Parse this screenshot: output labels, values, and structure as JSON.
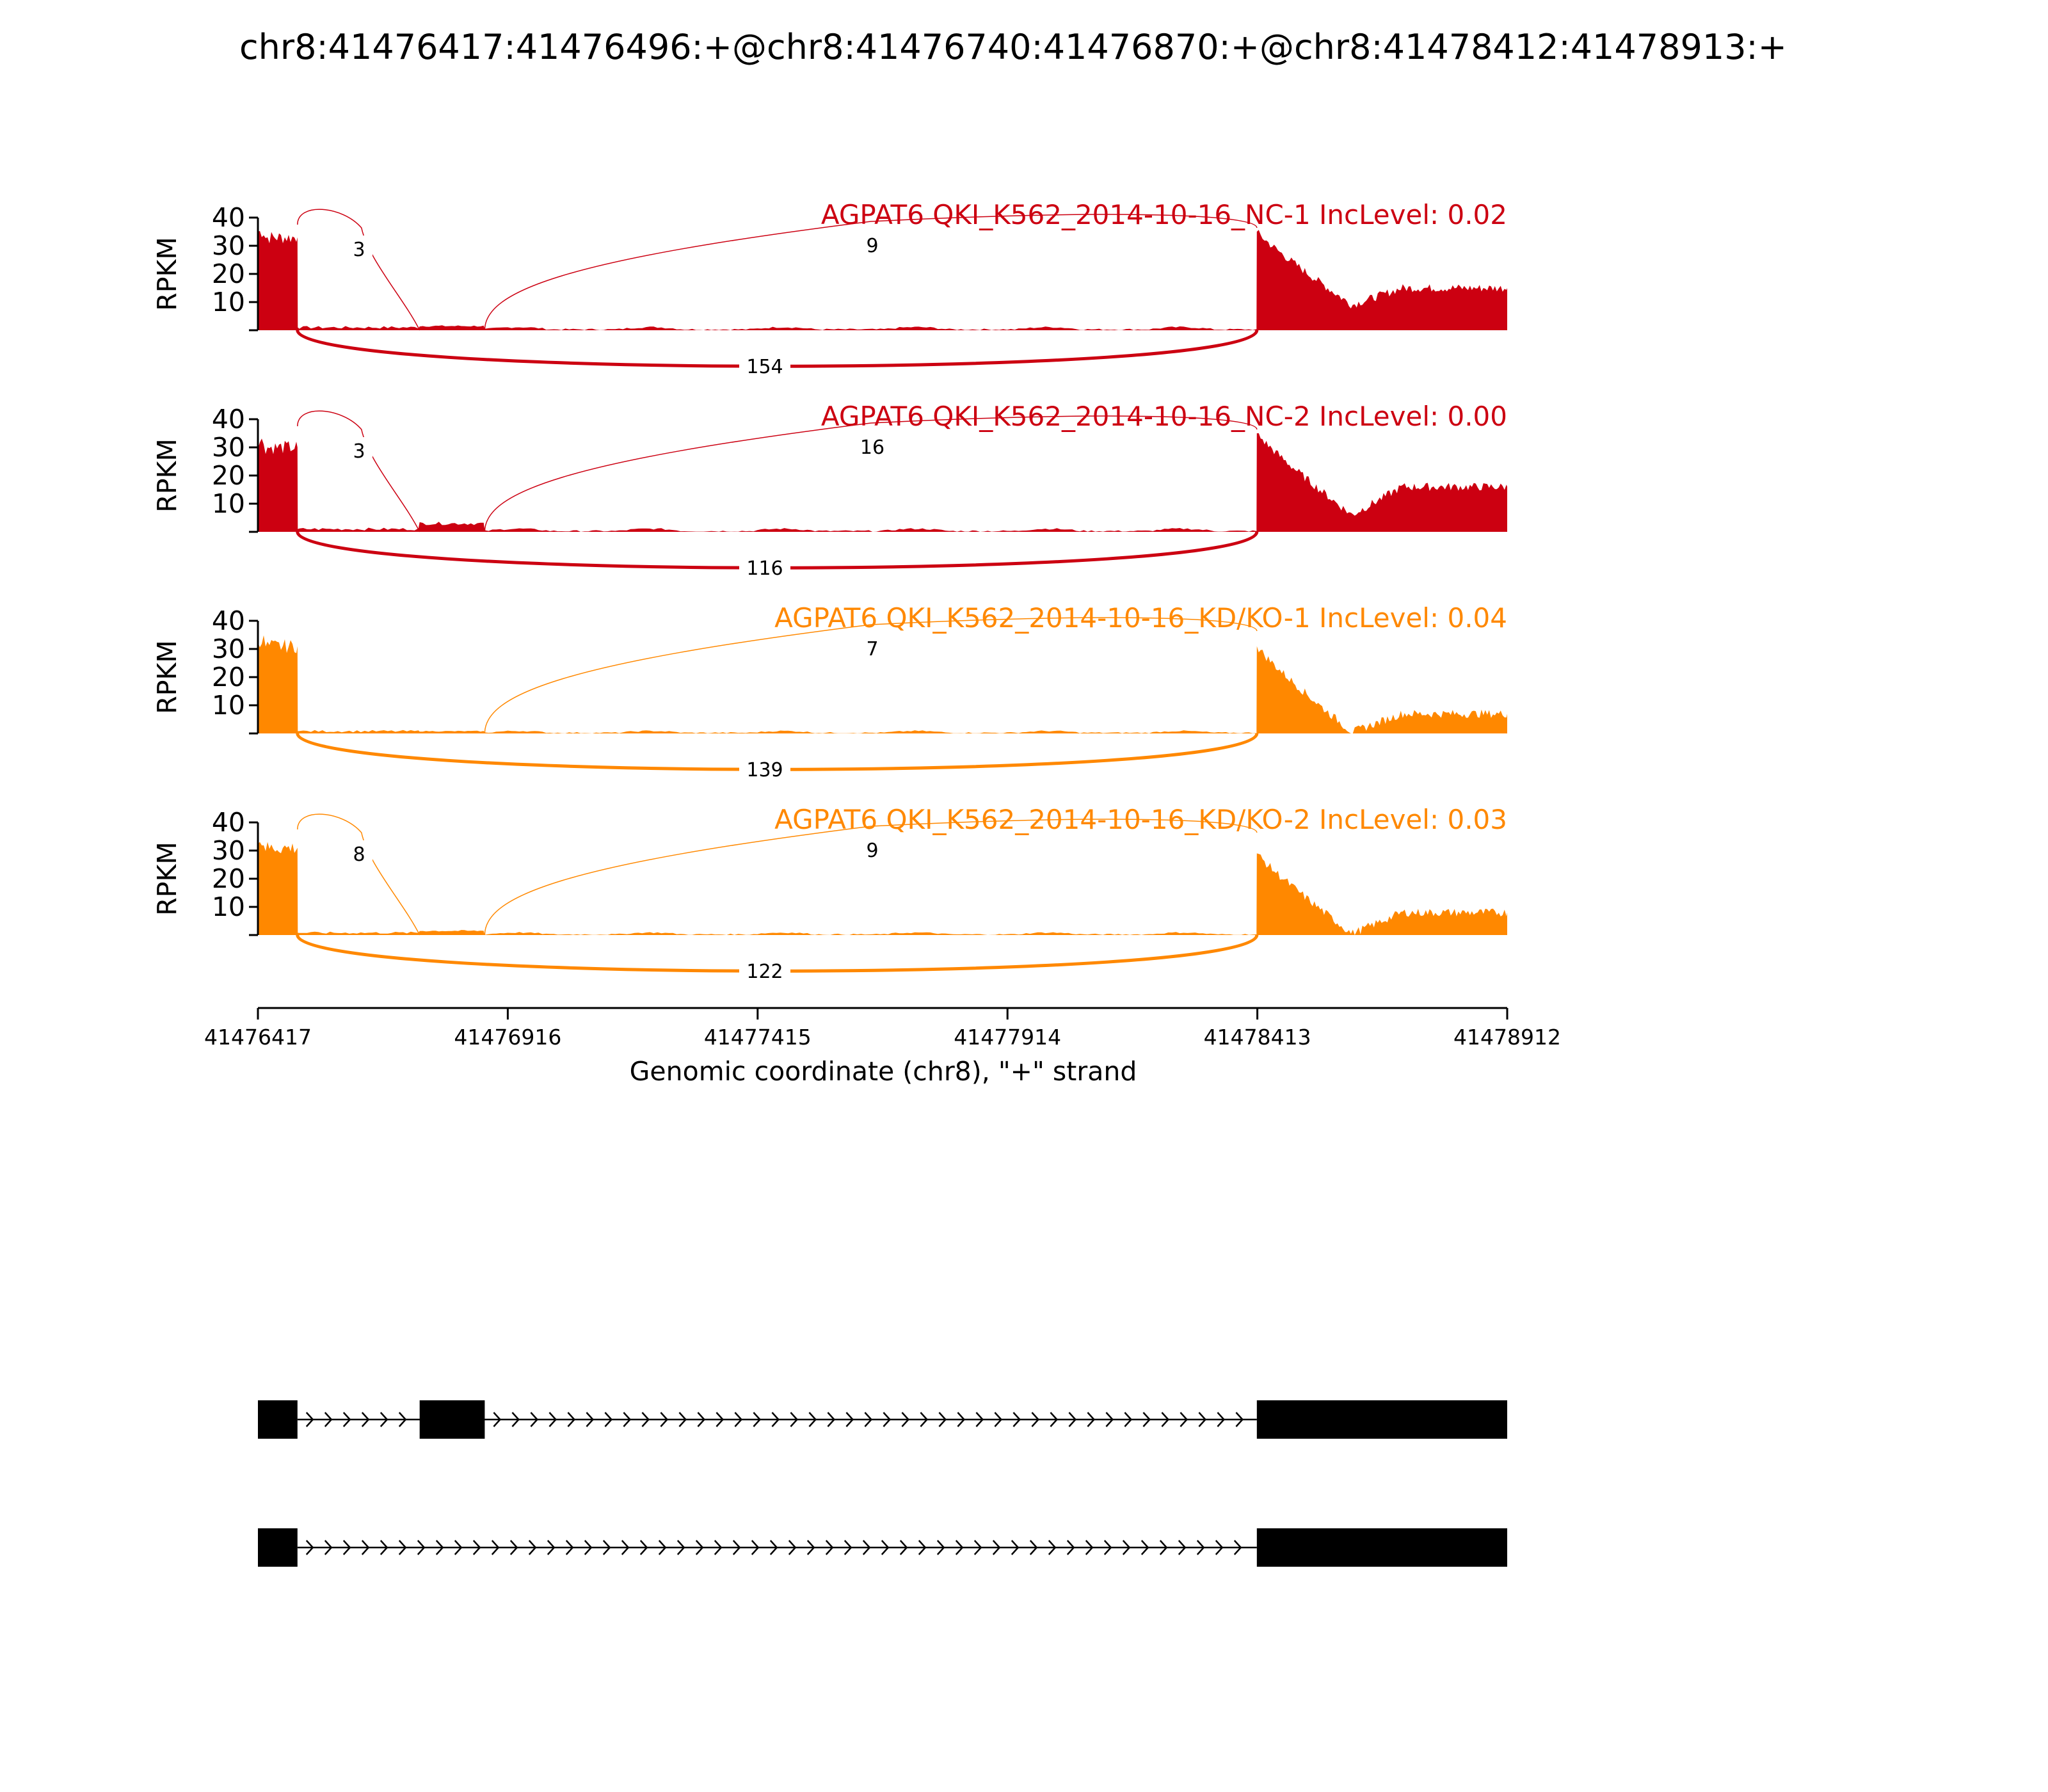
{
  "chart_data": {
    "type": "area",
    "title": "chr8:41476417:41476496:+@chr8:41476740:41476870:+@chr8:41478412:41478913:+",
    "xlabel": "Genomic coordinate (chr8), \"+\" strand",
    "ylabel": "RPKM",
    "xlim": [
      41476417,
      41478912
    ],
    "ylim": [
      0,
      40
    ],
    "x_ticks": [
      "41476417",
      "41476916",
      "41477415",
      "41477914",
      "41478413",
      "41478912"
    ],
    "y_ticks": [
      "10",
      "20",
      "30",
      "40"
    ],
    "colors": {
      "NC": "#cc0011",
      "KD": "#ff8800"
    },
    "exons": [
      [
        41476417,
        41476496
      ],
      [
        41476740,
        41476870
      ],
      [
        41478412,
        41478913
      ]
    ],
    "tracks": [
      {
        "label": "AGPAT6 QKI_K562_2014-10-16_NC-1 IncLevel: 0.02",
        "group": "NC",
        "junctions": {
          "upstream_to_skipped": "3",
          "skipped_to_downstream": "9",
          "exclusion": "154"
        },
        "coverage": {
          "exon1": 33,
          "exon2": 1.5,
          "intron": 1,
          "exon3_peak": 35,
          "exon3_dip": 9,
          "exon3_tail": 15
        }
      },
      {
        "label": "AGPAT6 QKI_K562_2014-10-16_NC-2 IncLevel: 0.00",
        "group": "NC",
        "junctions": {
          "upstream_to_skipped": "3",
          "skipped_to_downstream": "16",
          "exclusion": "116"
        },
        "coverage": {
          "exon1": 30,
          "exon2": 3,
          "intron": 1,
          "exon3_peak": 35,
          "exon3_dip": 6,
          "exon3_tail": 16
        }
      },
      {
        "label": "AGPAT6 QKI_K562_2014-10-16_KD/KO-1 IncLevel: 0.04",
        "group": "KD",
        "junctions": {
          "upstream_to_skipped": "",
          "skipped_to_downstream": "7",
          "exclusion": "139"
        },
        "coverage": {
          "exon1": 31,
          "exon2": 0.8,
          "intron": 0.8,
          "exon3_peak": 31,
          "exon3_dip": 0.5,
          "exon3_tail": 7
        }
      },
      {
        "label": "AGPAT6 QKI_K562_2014-10-16_KD/KO-2 IncLevel: 0.03",
        "group": "KD",
        "junctions": {
          "upstream_to_skipped": "8",
          "skipped_to_downstream": "9",
          "exclusion": "122"
        },
        "coverage": {
          "exon1": 31,
          "exon2": 1.5,
          "intron": 0.8,
          "exon3_peak": 29,
          "exon3_dip": 0.5,
          "exon3_tail": 8
        }
      }
    ],
    "isoforms": [
      {
        "exons": [
          [
            41476417,
            41476496
          ],
          [
            41476740,
            41476870
          ],
          [
            41478412,
            41478913
          ]
        ]
      },
      {
        "exons": [
          [
            41476417,
            41476496
          ],
          [
            41478412,
            41478913
          ]
        ]
      }
    ]
  }
}
